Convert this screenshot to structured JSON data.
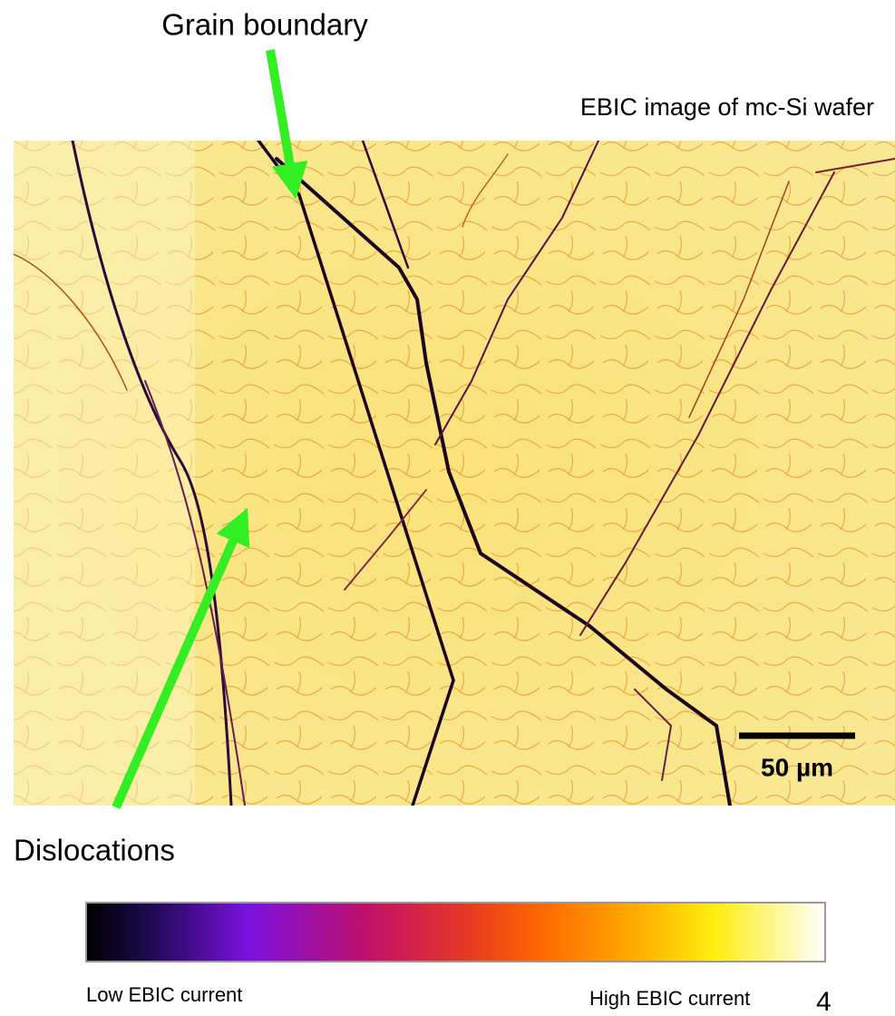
{
  "slide": {
    "callouts": {
      "grain_boundary": "Grain boundary",
      "dislocations": "Dislocations"
    },
    "image_caption": "EBIC image of mc-Si wafer",
    "scale_bar": "50 µm",
    "colorbar": {
      "low_label": "Low EBIC current",
      "high_label": "High EBIC current"
    },
    "page_number": "4"
  }
}
